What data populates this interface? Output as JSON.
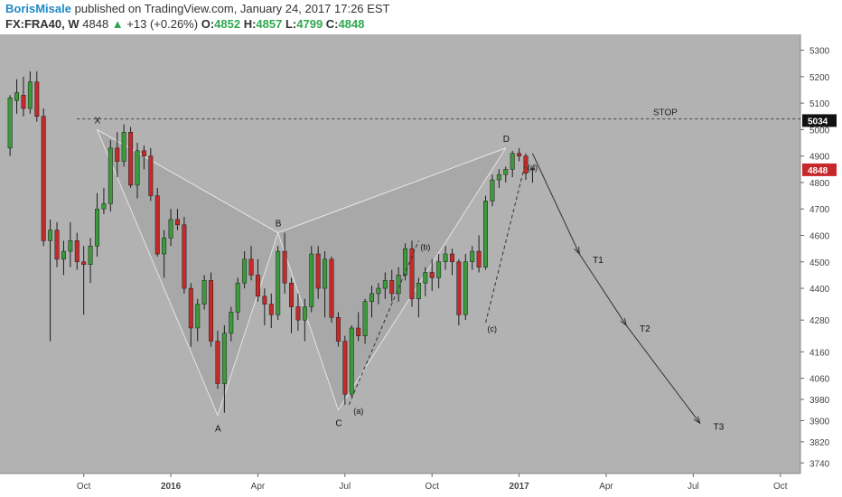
{
  "header": {
    "author": "BorisMisale",
    "published_text": "published on TradingView.com, January 24, 2017 17:26 EST",
    "symbol": "FX:FRA40, W",
    "last": "4848",
    "change": "+13 (+0.26%)",
    "o_label": "O:",
    "o_value": "4852",
    "h_label": "H:",
    "h_value": "4857",
    "l_label": "L:",
    "l_value": "4799",
    "c_label": "C:",
    "c_value": "4848"
  },
  "colors": {
    "plot_bg": "#b2b2b2",
    "up": "#3c9a3c",
    "down": "#c42a2a",
    "wick": "#1c1c1c",
    "pattern_line": "#e8e8e8",
    "price_tag_red": "#c6282b",
    "price_tag_black": "#111111"
  },
  "chart_data": {
    "type": "candlestick",
    "y_axis": {
      "ticks": [
        5300,
        5200,
        5100,
        5000,
        4900,
        4800,
        4700,
        4600,
        4500,
        4400,
        4280,
        4160,
        4060,
        3980,
        3900,
        3820,
        3740
      ],
      "range": [
        3700,
        5360
      ]
    },
    "x_axis": {
      "ticks": [
        {
          "label": "Oct",
          "bold": false,
          "index": 11
        },
        {
          "label": "2016",
          "bold": true,
          "index": 24
        },
        {
          "label": "Apr",
          "bold": false,
          "index": 37
        },
        {
          "label": "Jul",
          "bold": false,
          "index": 50
        },
        {
          "label": "Oct",
          "bold": false,
          "index": 63
        },
        {
          "label": "2017",
          "bold": true,
          "index": 76
        },
        {
          "label": "Apr",
          "bold": false,
          "index": 89
        },
        {
          "label": "Jul",
          "bold": false,
          "index": 102
        },
        {
          "label": "Oct",
          "bold": false,
          "index": 115
        }
      ],
      "range": [
        -1.5,
        118
      ]
    },
    "candles": [
      {
        "o": 4930,
        "h": 5130,
        "l": 4900,
        "c": 5120
      },
      {
        "o": 5110,
        "h": 5190,
        "l": 5060,
        "c": 5140
      },
      {
        "o": 5130,
        "h": 5200,
        "l": 5050,
        "c": 5080
      },
      {
        "o": 5080,
        "h": 5220,
        "l": 5060,
        "c": 5180
      },
      {
        "o": 5180,
        "h": 5220,
        "l": 5030,
        "c": 5050
      },
      {
        "o": 5050,
        "h": 5080,
        "l": 4560,
        "c": 4580
      },
      {
        "o": 4580,
        "h": 4660,
        "l": 4200,
        "c": 4620
      },
      {
        "o": 4620,
        "h": 4650,
        "l": 4480,
        "c": 4510
      },
      {
        "o": 4510,
        "h": 4580,
        "l": 4450,
        "c": 4540
      },
      {
        "o": 4540,
        "h": 4650,
        "l": 4480,
        "c": 4580
      },
      {
        "o": 4580,
        "h": 4610,
        "l": 4470,
        "c": 4500
      },
      {
        "o": 4500,
        "h": 4560,
        "l": 4300,
        "c": 4490
      },
      {
        "o": 4490,
        "h": 4590,
        "l": 4420,
        "c": 4560
      },
      {
        "o": 4560,
        "h": 4760,
        "l": 4520,
        "c": 4700
      },
      {
        "o": 4700,
        "h": 4780,
        "l": 4680,
        "c": 4720
      },
      {
        "o": 4720,
        "h": 4960,
        "l": 4690,
        "c": 4930
      },
      {
        "o": 4930,
        "h": 4990,
        "l": 4820,
        "c": 4880
      },
      {
        "o": 4880,
        "h": 5020,
        "l": 4860,
        "c": 4990
      },
      {
        "o": 4990,
        "h": 5010,
        "l": 4780,
        "c": 4790
      },
      {
        "o": 4790,
        "h": 4950,
        "l": 4740,
        "c": 4920
      },
      {
        "o": 4920,
        "h": 4940,
        "l": 4850,
        "c": 4900
      },
      {
        "o": 4900,
        "h": 4930,
        "l": 4730,
        "c": 4750
      },
      {
        "o": 4750,
        "h": 4780,
        "l": 4520,
        "c": 4530
      },
      {
        "o": 4530,
        "h": 4620,
        "l": 4440,
        "c": 4590
      },
      {
        "o": 4590,
        "h": 4700,
        "l": 4560,
        "c": 4660
      },
      {
        "o": 4660,
        "h": 4700,
        "l": 4620,
        "c": 4640
      },
      {
        "o": 4640,
        "h": 4670,
        "l": 4380,
        "c": 4400
      },
      {
        "o": 4400,
        "h": 4420,
        "l": 4180,
        "c": 4250
      },
      {
        "o": 4250,
        "h": 4360,
        "l": 4200,
        "c": 4340
      },
      {
        "o": 4340,
        "h": 4450,
        "l": 4320,
        "c": 4430
      },
      {
        "o": 4430,
        "h": 4460,
        "l": 4180,
        "c": 4200
      },
      {
        "o": 4200,
        "h": 4240,
        "l": 4020,
        "c": 4040
      },
      {
        "o": 4040,
        "h": 4260,
        "l": 3930,
        "c": 4230
      },
      {
        "o": 4230,
        "h": 4330,
        "l": 4200,
        "c": 4310
      },
      {
        "o": 4310,
        "h": 4440,
        "l": 4280,
        "c": 4420
      },
      {
        "o": 4420,
        "h": 4540,
        "l": 4400,
        "c": 4510
      },
      {
        "o": 4510,
        "h": 4560,
        "l": 4430,
        "c": 4450
      },
      {
        "o": 4450,
        "h": 4510,
        "l": 4350,
        "c": 4370
      },
      {
        "o": 4370,
        "h": 4400,
        "l": 4260,
        "c": 4340
      },
      {
        "o": 4340,
        "h": 4380,
        "l": 4250,
        "c": 4300
      },
      {
        "o": 4300,
        "h": 4560,
        "l": 4280,
        "c": 4540
      },
      {
        "o": 4540,
        "h": 4610,
        "l": 4380,
        "c": 4420
      },
      {
        "o": 4420,
        "h": 4440,
        "l": 4230,
        "c": 4330
      },
      {
        "o": 4330,
        "h": 4380,
        "l": 4240,
        "c": 4280
      },
      {
        "o": 4280,
        "h": 4360,
        "l": 4200,
        "c": 4330
      },
      {
        "o": 4330,
        "h": 4560,
        "l": 4310,
        "c": 4530
      },
      {
        "o": 4530,
        "h": 4560,
        "l": 4360,
        "c": 4400
      },
      {
        "o": 4400,
        "h": 4540,
        "l": 4290,
        "c": 4510
      },
      {
        "o": 4510,
        "h": 4520,
        "l": 4270,
        "c": 4290
      },
      {
        "o": 4290,
        "h": 4310,
        "l": 4180,
        "c": 4200
      },
      {
        "o": 4200,
        "h": 4220,
        "l": 3960,
        "c": 4000
      },
      {
        "o": 4000,
        "h": 4260,
        "l": 3990,
        "c": 4250
      },
      {
        "o": 4250,
        "h": 4310,
        "l": 4200,
        "c": 4220
      },
      {
        "o": 4220,
        "h": 4360,
        "l": 4190,
        "c": 4350
      },
      {
        "o": 4350,
        "h": 4410,
        "l": 4290,
        "c": 4380
      },
      {
        "o": 4380,
        "h": 4420,
        "l": 4340,
        "c": 4400
      },
      {
        "o": 4400,
        "h": 4460,
        "l": 4360,
        "c": 4430
      },
      {
        "o": 4430,
        "h": 4470,
        "l": 4350,
        "c": 4380
      },
      {
        "o": 4380,
        "h": 4480,
        "l": 4350,
        "c": 4450
      },
      {
        "o": 4450,
        "h": 4570,
        "l": 4430,
        "c": 4550
      },
      {
        "o": 4550,
        "h": 4580,
        "l": 4330,
        "c": 4360
      },
      {
        "o": 4360,
        "h": 4440,
        "l": 4290,
        "c": 4420
      },
      {
        "o": 4420,
        "h": 4480,
        "l": 4370,
        "c": 4460
      },
      {
        "o": 4460,
        "h": 4510,
        "l": 4390,
        "c": 4440
      },
      {
        "o": 4440,
        "h": 4530,
        "l": 4400,
        "c": 4500
      },
      {
        "o": 4500,
        "h": 4560,
        "l": 4470,
        "c": 4530
      },
      {
        "o": 4530,
        "h": 4550,
        "l": 4450,
        "c": 4500
      },
      {
        "o": 4500,
        "h": 4510,
        "l": 4260,
        "c": 4300
      },
      {
        "o": 4300,
        "h": 4530,
        "l": 4280,
        "c": 4500
      },
      {
        "o": 4500,
        "h": 4560,
        "l": 4470,
        "c": 4540
      },
      {
        "o": 4540,
        "h": 4600,
        "l": 4460,
        "c": 4480
      },
      {
        "o": 4480,
        "h": 4750,
        "l": 4470,
        "c": 4730
      },
      {
        "o": 4730,
        "h": 4830,
        "l": 4710,
        "c": 4810
      },
      {
        "o": 4810,
        "h": 4850,
        "l": 4780,
        "c": 4830
      },
      {
        "o": 4830,
        "h": 4860,
        "l": 4800,
        "c": 4850
      },
      {
        "o": 4850,
        "h": 4920,
        "l": 4820,
        "c": 4910
      },
      {
        "o": 4910,
        "h": 4930,
        "l": 4880,
        "c": 4900
      },
      {
        "o": 4900,
        "h": 4910,
        "l": 4810,
        "c": 4835
      },
      {
        "o": 4852,
        "h": 4857,
        "l": 4799,
        "c": 4848
      }
    ],
    "stop_line": {
      "label": "STOP",
      "value": 5040
    },
    "last_price_tag": "4848",
    "top_price_tag": "5034",
    "pattern": [
      {
        "label": "X",
        "index": 13,
        "value": 5000
      },
      {
        "label": "A",
        "index": 31,
        "value": 3920
      },
      {
        "label": "B",
        "index": 40,
        "value": 4610
      },
      {
        "label": "C",
        "index": 49,
        "value": 3940
      },
      {
        "label": "D",
        "index": 74,
        "value": 4930
      }
    ],
    "wave_labels": [
      {
        "label": "(a)",
        "index": 51,
        "value": 3960
      },
      {
        "label": "(b)",
        "index": 61,
        "value": 4580
      },
      {
        "label": "(c)",
        "index": 71,
        "value": 4270
      },
      {
        "label": "(d)",
        "index": 77,
        "value": 4880
      }
    ],
    "projection": [
      {
        "index": 78,
        "value": 4910
      },
      {
        "index": 85,
        "value": 4530
      },
      {
        "label": "T1",
        "index": 87,
        "value": 4510
      },
      {
        "index": 92,
        "value": 4260
      },
      {
        "label": "T2",
        "index": 94,
        "value": 4250
      },
      {
        "index": 103,
        "value": 3890
      },
      {
        "label": "T3",
        "index": 105,
        "value": 3880
      }
    ]
  }
}
